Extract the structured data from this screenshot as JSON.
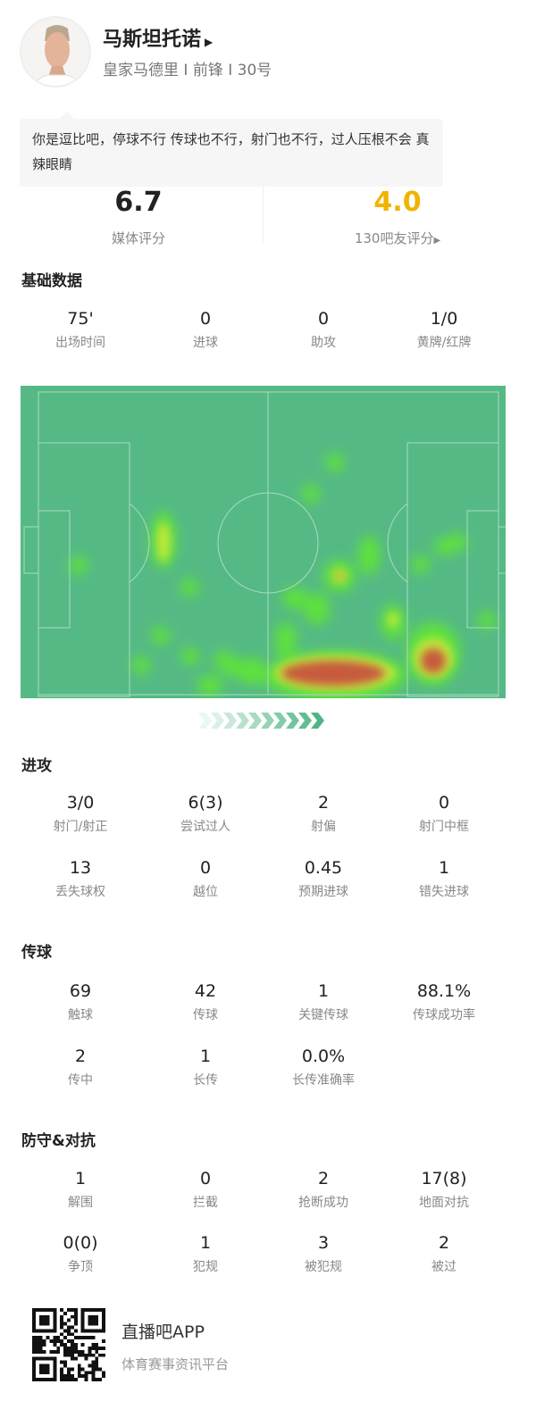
{
  "player": {
    "name": "马斯坦托诺",
    "subtitle": "皇家马德里 I 前锋 I 30号",
    "comment": "你是逗比吧，停球不行 传球也不行，射门也不行，过人压根不会 真辣眼睛"
  },
  "ratings": {
    "media_value": "6.7",
    "media_label": "媒体评分",
    "fan_value": "4.0",
    "fan_label": "130吧友评分",
    "fan_color": "#f0b400"
  },
  "sections": {
    "basic": "基础数据",
    "attack": "进攻",
    "passing": "传球",
    "defense": "防守&对抗"
  },
  "basic": [
    {
      "v": "75'",
      "l": "出场时间"
    },
    {
      "v": "0",
      "l": "进球"
    },
    {
      "v": "0",
      "l": "助攻"
    },
    {
      "v": "1/0",
      "l": "黄牌/红牌"
    }
  ],
  "attack": [
    {
      "v": "3/0",
      "l": "射门/射正"
    },
    {
      "v": "6(3)",
      "l": "尝试过人"
    },
    {
      "v": "2",
      "l": "射偏"
    },
    {
      "v": "0",
      "l": "射门中框"
    },
    {
      "v": "13",
      "l": "丢失球权"
    },
    {
      "v": "0",
      "l": "越位"
    },
    {
      "v": "0.45",
      "l": "预期进球"
    },
    {
      "v": "1",
      "l": "错失进球"
    }
  ],
  "passing": [
    {
      "v": "69",
      "l": "触球"
    },
    {
      "v": "42",
      "l": "传球"
    },
    {
      "v": "1",
      "l": "关键传球"
    },
    {
      "v": "88.1%",
      "l": "传球成功率"
    },
    {
      "v": "2",
      "l": "传中"
    },
    {
      "v": "1",
      "l": "长传"
    },
    {
      "v": "0.0%",
      "l": "长传准确率"
    }
  ],
  "defense": [
    {
      "v": "1",
      "l": "解围"
    },
    {
      "v": "0",
      "l": "拦截"
    },
    {
      "v": "2",
      "l": "抢断成功"
    },
    {
      "v": "17(8)",
      "l": "地面对抗"
    },
    {
      "v": "0(0)",
      "l": "争顶"
    },
    {
      "v": "1",
      "l": "犯规"
    },
    {
      "v": "3",
      "l": "被犯规"
    },
    {
      "v": "2",
      "l": "被过"
    }
  ],
  "heatmap": {
    "pitch_color": "#55b985",
    "line_color": "#a9dcc0",
    "direction": "left-to-right"
  },
  "footer": {
    "app_name": "直播吧APP",
    "tagline": "体育赛事资讯平台"
  }
}
